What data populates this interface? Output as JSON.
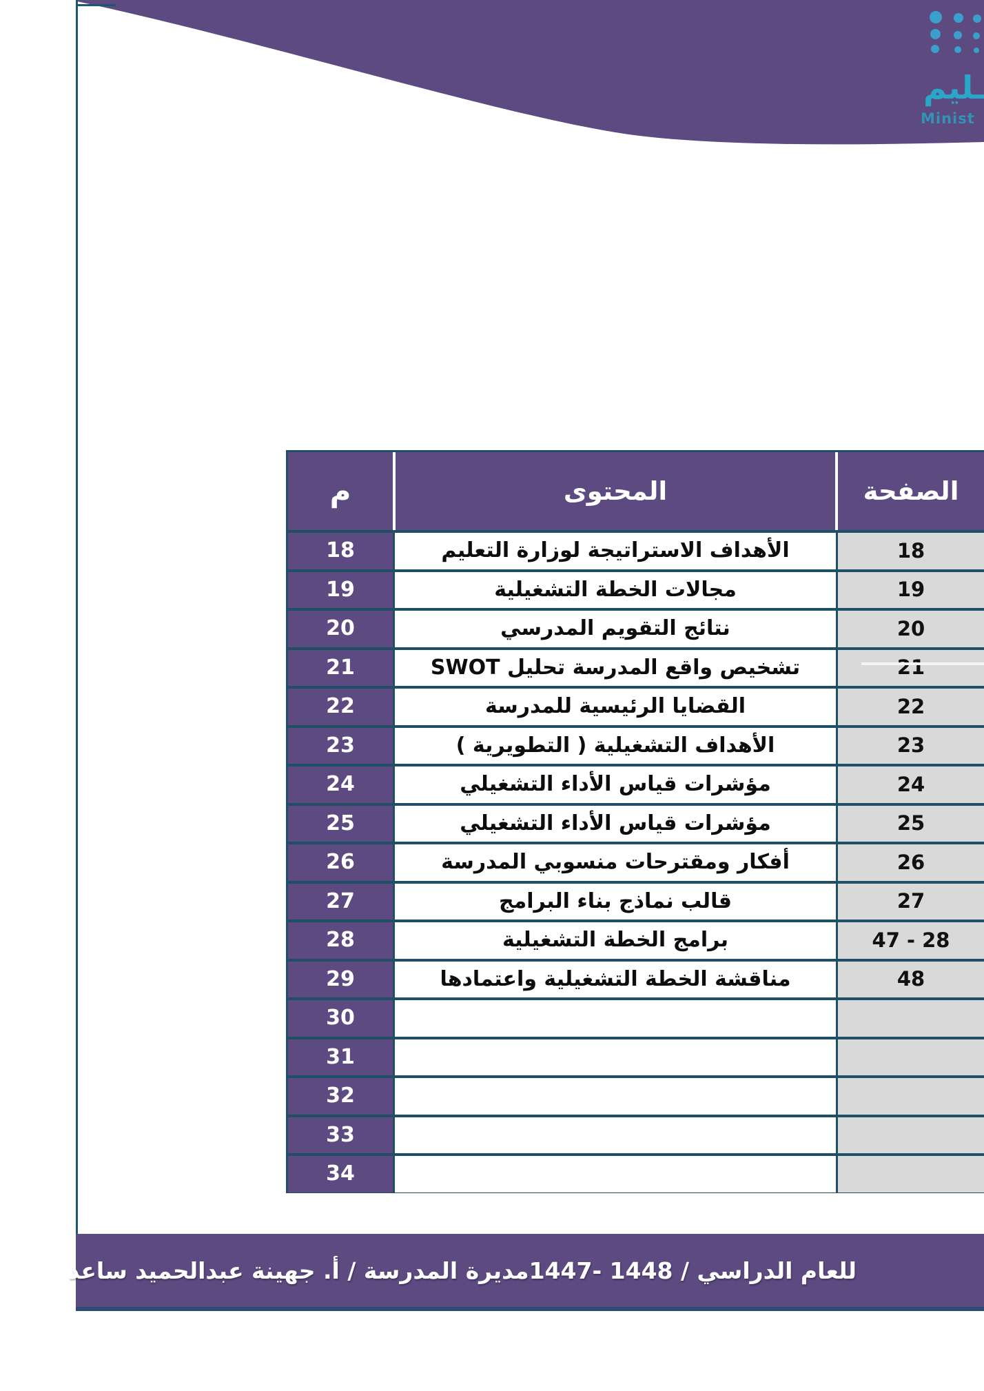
{
  "logo": {
    "name": "ministry-of-education-logo",
    "arabic_partial": "ـليم",
    "english_partial": "Minist"
  },
  "table": {
    "headers": {
      "num": "م",
      "content": "المحتوى",
      "page": "الصفحة"
    },
    "rows": [
      {
        "num": "18",
        "content": "الأهداف الاستراتيجة لوزارة التعليم",
        "page": "18",
        "artifact_line": false
      },
      {
        "num": "19",
        "content": "مجالات الخطة التشغيلية",
        "page": "19",
        "artifact_line": false
      },
      {
        "num": "20",
        "content": "نتائج التقويم المدرسي",
        "page": "20",
        "artifact_line": false
      },
      {
        "num": "21",
        "content": "تشخيص واقع المدرسة تحليل SWOT",
        "page": "21",
        "artifact_line": true
      },
      {
        "num": "22",
        "content": "القضايا الرئيسية للمدرسة",
        "page": "22",
        "artifact_line": false
      },
      {
        "num": "23",
        "content": "الأهداف التشغيلية ( التطويرية )",
        "page": "23",
        "artifact_line": false
      },
      {
        "num": "24",
        "content": "مؤشرات قياس الأداء التشغيلي",
        "page": "24",
        "artifact_line": false
      },
      {
        "num": "25",
        "content": "مؤشرات قياس الأداء التشغيلي",
        "page": "25",
        "artifact_line": false
      },
      {
        "num": "26",
        "content": "أفكار ومقترحات منسوبي المدرسة",
        "page": "26",
        "artifact_line": false
      },
      {
        "num": "27",
        "content": "قالب نماذج بناء البرامج",
        "page": "27",
        "artifact_line": false
      },
      {
        "num": "28",
        "content": "برامج الخطة التشغيلية",
        "page": "28 - 47",
        "artifact_line": false
      },
      {
        "num": "29",
        "content": "مناقشة الخطة التشغيلية واعتمادها",
        "page": "48",
        "artifact_line": false
      },
      {
        "num": "30",
        "content": "",
        "page": "",
        "artifact_line": false
      },
      {
        "num": "31",
        "content": "",
        "page": "",
        "artifact_line": false
      },
      {
        "num": "32",
        "content": "",
        "page": "",
        "artifact_line": false
      },
      {
        "num": "33",
        "content": "",
        "page": "",
        "artifact_line": false
      },
      {
        "num": "34",
        "content": "",
        "page": "",
        "artifact_line": false
      }
    ]
  },
  "footer": {
    "academic_year": "للعام الدراسي /  1448 -1447",
    "principal": "مديرة المدرسة / أ. جهينة عبدالحميد ساعد"
  },
  "colors": {
    "purple": "#5c4a80",
    "table_border_teal": "#1e4f66",
    "footer_border_navy": "#2b4b72",
    "page_cell_gray": "#d9d9d9",
    "logo_dot_teal": "#3c9fcb",
    "logo_text_teal": "#2aa7c8"
  }
}
